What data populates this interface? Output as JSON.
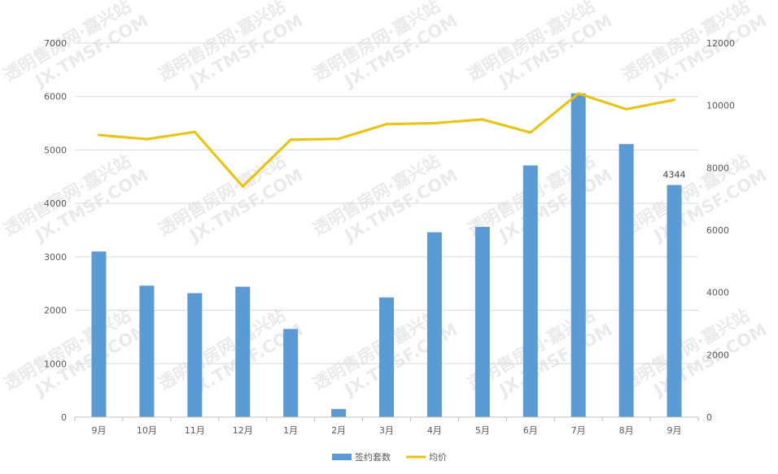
{
  "chart_data": {
    "type": "bar-line-combo",
    "categories": [
      "9月",
      "10月",
      "11月",
      "12月",
      "1月",
      "2月",
      "3月",
      "4月",
      "5月",
      "6月",
      "7月",
      "8月",
      "9月"
    ],
    "series": [
      {
        "name": "签约套数",
        "type": "bar",
        "axis": "left",
        "color": "#5b9bd5",
        "values": [
          3100,
          2460,
          2320,
          2440,
          1650,
          150,
          2240,
          3460,
          3560,
          4710,
          6060,
          5110,
          4344
        ]
      },
      {
        "name": "均价",
        "type": "line",
        "axis": "right",
        "color": "#f2c200",
        "values": [
          9050,
          8920,
          9150,
          7400,
          8900,
          8930,
          9400,
          9430,
          9550,
          9130,
          10380,
          9880,
          10180
        ]
      }
    ],
    "data_labels": [
      {
        "index": 12,
        "series": 0,
        "text": "4344"
      }
    ],
    "left_axis": {
      "min": 0,
      "max": 7000,
      "ticks": [
        "0",
        "1000",
        "2000",
        "3000",
        "4000",
        "5000",
        "6000",
        "7000"
      ]
    },
    "right_axis": {
      "min": 0,
      "max": 12000,
      "ticks": [
        "0",
        "2000",
        "4000",
        "6000",
        "8000",
        "10000",
        "12000"
      ]
    },
    "grid": true,
    "legend": "bottom"
  },
  "watermark": {
    "line1": "透明售房网·嘉兴站",
    "line2": "JX.TMSF.COM"
  }
}
